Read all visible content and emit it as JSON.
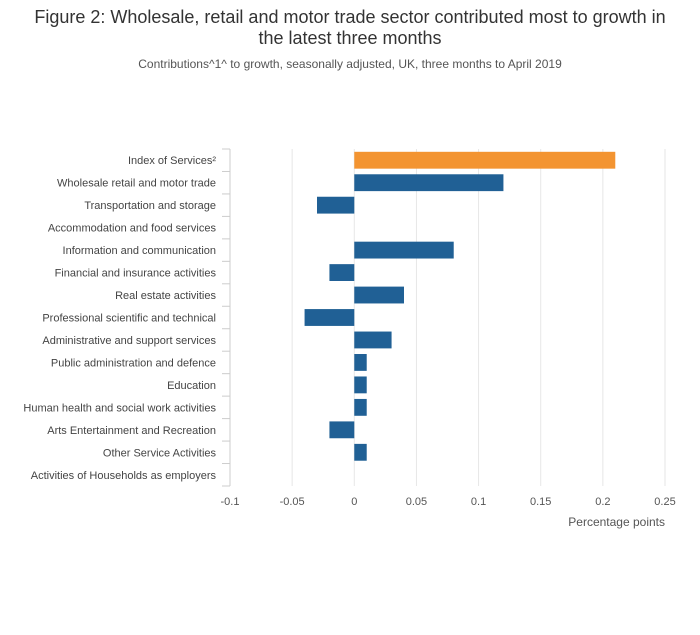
{
  "chart_data": {
    "type": "bar",
    "orientation": "horizontal",
    "title": "Figure 2: Wholesale, retail and motor trade sector contributed most to growth in the latest three months",
    "subtitle": "Contributions^1^ to growth, seasonally adjusted, UK, three months to April 2019",
    "xlabel": "Percentage points",
    "ylabel": "",
    "xlim": [
      -0.1,
      0.25
    ],
    "xticks": [
      -0.1,
      -0.05,
      0,
      0.05,
      0.1,
      0.15,
      0.2,
      0.25
    ],
    "xtick_labels": [
      "-0.1",
      "-0.05",
      "0",
      "0.05",
      "0.1",
      "0.15",
      "0.2",
      "0.25"
    ],
    "grid": true,
    "categories": [
      "Index of Services²",
      "Wholesale retail and motor trade",
      "Transportation and storage",
      "Accommodation and food services",
      "Information and communication",
      "Financial and insurance activities",
      "Real estate activities",
      "Professional scientific and technical",
      "Administrative and support services",
      "Public administration and defence",
      "Education",
      "Human health and social work activities",
      "Arts Entertainment and Recreation",
      "Other Service Activities",
      "Activities of Households as employers"
    ],
    "values": [
      0.21,
      0.12,
      -0.03,
      0.0,
      0.08,
      -0.02,
      0.04,
      -0.04,
      0.03,
      0.01,
      0.01,
      0.01,
      -0.02,
      0.01,
      0.0
    ],
    "colors": {
      "highlight": "#f39431",
      "default": "#206095",
      "grid": "#e6e6e6",
      "axis": "#cccccc"
    },
    "highlight_index": 0
  }
}
